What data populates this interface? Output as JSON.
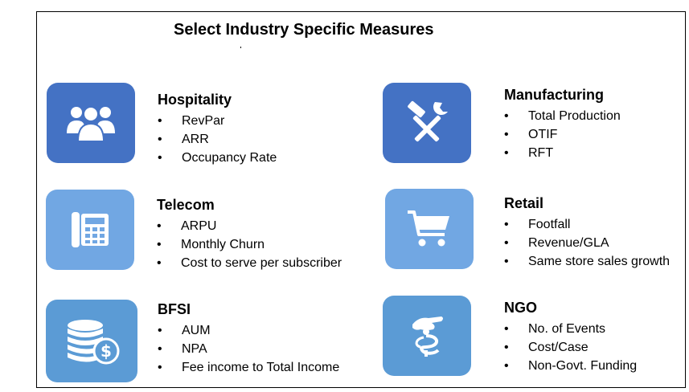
{
  "title": "Select Industry Specific Measures",
  "colors": {
    "dark_tile": "#4472c4",
    "light_tile": "#71a7e3",
    "mid_tile": "#5b9bd5",
    "icon": "#ffffff"
  },
  "sections": [
    {
      "name": "Hospitality",
      "icon": "people-group-icon",
      "items": [
        "RevPar",
        "ARR",
        "Occupancy Rate"
      ]
    },
    {
      "name": "Manufacturing",
      "icon": "hammer-wrench-icon",
      "items": [
        "Total Production",
        "OTIF",
        "RFT"
      ]
    },
    {
      "name": "Telecom",
      "icon": "telephone-icon",
      "items": [
        "ARPU",
        "Monthly Churn",
        "Cost to serve per subscriber"
      ]
    },
    {
      "name": "Retail",
      "icon": "shopping-cart-icon",
      "items": [
        "Footfall",
        "Revenue/GLA",
        "Same store sales growth"
      ]
    },
    {
      "name": "BFSI",
      "icon": "coins-dollar-icon",
      "items": [
        "AUM",
        "NPA",
        "Fee income to Total Income"
      ]
    },
    {
      "name": "NGO",
      "icon": "hand-donation-icon",
      "items": [
        "No. of Events",
        "Cost/Case",
        "Non-Govt. Funding"
      ]
    }
  ]
}
